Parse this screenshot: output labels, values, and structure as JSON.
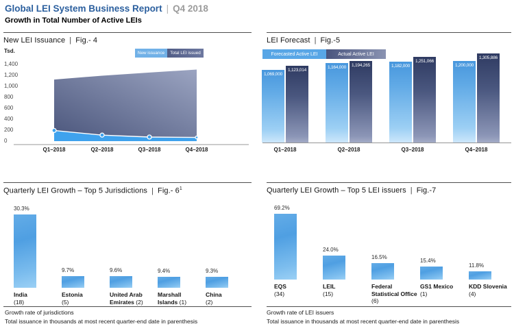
{
  "header": {
    "title": "Global LEI System Business Report",
    "sep": "|",
    "period": "Q4 2018",
    "subtitle": "Growth in Total Number of Active LEIs"
  },
  "fig4": {
    "title": "New LEI Issuance",
    "sep": "|",
    "fig": "Fig.- 4",
    "unit_label": "Tsd.",
    "y_ticks": [
      "1,400",
      "1,200",
      "1,000",
      "800",
      "600",
      "400",
      "200",
      "0"
    ],
    "legend": [
      {
        "label": "New issuance",
        "color": "#71b1e7"
      },
      {
        "label": "Total LEI issued",
        "color": "#565f87"
      }
    ],
    "chart_data": {
      "type": "area",
      "categories": [
        "Q1–2018",
        "Q2–2018",
        "Q3–2018",
        "Q4–2018"
      ],
      "series": [
        {
          "name": "New issuance",
          "values": [
            195,
            110,
            75,
            68
          ]
        },
        {
          "name": "Total LEI issued",
          "values": [
            1123,
            1194,
            1251,
            1306
          ]
        }
      ],
      "ylabel": "Tsd.",
      "ylim": [
        0,
        1400
      ],
      "unit": "thousands",
      "legend_position": "top-right",
      "grid": false
    }
  },
  "fig5": {
    "title": "LEI Forecast",
    "sep": "|",
    "fig": "Fig.-5",
    "legend": [
      {
        "label": "Forecasted Active LEI",
        "color": "#58a6e6"
      },
      {
        "label": "Actual Active LEI",
        "color": "#49547e"
      }
    ],
    "chart_data": {
      "type": "bar",
      "categories": [
        "Q1–2018",
        "Q2–2018",
        "Q3–2018",
        "Q4–2018"
      ],
      "series": [
        {
          "name": "Forecasted Active LEI",
          "values": [
            1069000,
            1164000,
            1182000,
            1200000
          ],
          "labels": [
            "1,069,000",
            "1,164,000",
            "1,182,000",
            "1,200,000"
          ]
        },
        {
          "name": "Actual Active LEI",
          "values": [
            1123014,
            1194265,
            1251066,
            1305886
          ],
          "labels": [
            "1,123,014",
            "1,194,265",
            "1,251,066",
            "1,305,886"
          ]
        }
      ],
      "legend_position": "top-left",
      "grid": false
    }
  },
  "fig6": {
    "title": "Quarterly LEI Growth – Top 5 Jurisdictions",
    "sep": "|",
    "fig": "Fig.- 6",
    "sup": "1",
    "items": [
      {
        "pct": "30.3%",
        "lines": [
          [
            {
              "t": "India",
              "b": 1
            }
          ],
          [
            {
              "t": "(18)",
              "b": 0
            }
          ]
        ]
      },
      {
        "pct": "9.7%",
        "lines": [
          [
            {
              "t": "Estonia",
              "b": 1
            }
          ],
          [
            {
              "t": "(5)",
              "b": 0
            }
          ]
        ]
      },
      {
        "pct": "9.6%",
        "lines": [
          [
            {
              "t": "United Arab",
              "b": 1
            }
          ],
          [
            {
              "t": "Emirates",
              "b": 1
            },
            {
              "t": " (2)",
              "b": 0
            }
          ]
        ]
      },
      {
        "pct": "9.4%",
        "lines": [
          [
            {
              "t": "Marshall",
              "b": 1
            }
          ],
          [
            {
              "t": "Islands",
              "b": 1
            },
            {
              "t": " (1)",
              "b": 0
            }
          ]
        ]
      },
      {
        "pct": "9.3%",
        "lines": [
          [
            {
              "t": "China",
              "b": 1
            }
          ],
          [
            {
              "t": "(2)",
              "b": 0
            }
          ]
        ]
      }
    ],
    "chart_data": {
      "type": "bar",
      "categories": [
        "India",
        "Estonia",
        "United Arab Emirates",
        "Marshall Islands",
        "China"
      ],
      "values": [
        30.3,
        9.7,
        9.6,
        9.4,
        9.3
      ],
      "value_unit": "%",
      "totals_thousands": [
        18,
        5,
        2,
        1,
        2
      ],
      "grid": false
    },
    "footnote1": "Growth rate of jurisdictions",
    "footnote2": "Total issuance in thousands at most recent quarter-end date in parenthesis"
  },
  "fig7": {
    "title": "Quarterly LEI Growth – Top 5 LEI issuers",
    "sep": "|",
    "fig": "Fig.-7",
    "items": [
      {
        "pct": "69.2%",
        "lines": [
          [
            {
              "t": "EQS",
              "b": 1
            }
          ],
          [
            {
              "t": "(34)",
              "b": 0
            }
          ]
        ]
      },
      {
        "pct": "24.0%",
        "lines": [
          [
            {
              "t": "LEIL",
              "b": 1
            }
          ],
          [
            {
              "t": "(15)",
              "b": 0
            }
          ]
        ]
      },
      {
        "pct": "16.5%",
        "lines": [
          [
            {
              "t": "Federal",
              "b": 1
            }
          ],
          [
            {
              "t": "Statistical Office",
              "b": 1
            }
          ],
          [
            {
              "t": "(6)",
              "b": 0
            }
          ]
        ]
      },
      {
        "pct": "15.4%",
        "lines": [
          [
            {
              "t": "GS1 Mexico",
              "b": 1
            }
          ],
          [
            {
              "t": "(1)",
              "b": 0
            }
          ]
        ]
      },
      {
        "pct": "11.8%",
        "lines": [
          [
            {
              "t": "KDD Slovenia",
              "b": 1
            }
          ],
          [
            {
              "t": "(4)",
              "b": 0
            }
          ]
        ]
      }
    ],
    "chart_data": {
      "type": "bar",
      "categories": [
        "EQS",
        "LEIL",
        "Federal Statistical Office",
        "GS1 Mexico",
        "KDD Slovenia"
      ],
      "values": [
        69.2,
        24.0,
        16.5,
        15.4,
        11.8
      ],
      "value_unit": "%",
      "totals_thousands": [
        34,
        15,
        6,
        1,
        4
      ],
      "grid": false
    },
    "footnote1": "Growth rate of LEI issuers",
    "footnote2": "Total issuance in thousands at most recent quarter-end date in parenthesis"
  },
  "colors": {
    "title_blue": "#2b5f9e",
    "period_gray": "#9b9b9b",
    "new_issuance_blue": "#3fa2ed",
    "total_area_dark": "#4c577d",
    "total_area_light": "#9ba4c1",
    "bar_light_top": "#4897dd",
    "bar_dark_top": "#2f3b62"
  }
}
